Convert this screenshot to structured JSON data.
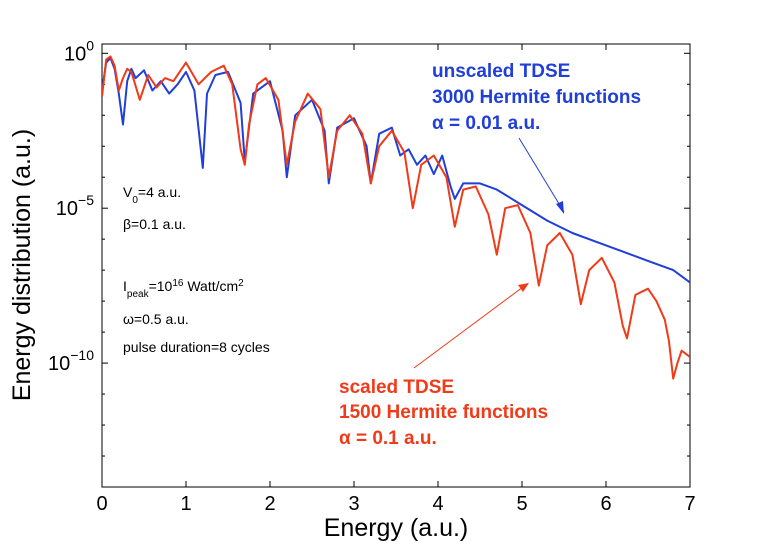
{
  "chart_data": {
    "type": "line",
    "xlabel": "Energy (a.u.)",
    "ylabel": "Energy distribution (a.u.)",
    "xlim": [
      0,
      7
    ],
    "ylim_log10": [
      -14,
      0.3
    ],
    "y_scale": "log",
    "x_ticks": [
      "0",
      "1",
      "2",
      "3",
      "4",
      "5",
      "6",
      "7"
    ],
    "y_ticks": [
      {
        "base": "10",
        "exp": "0"
      },
      {
        "base": "10",
        "exp": "−5"
      },
      {
        "base": "10",
        "exp": "−10"
      }
    ],
    "params": {
      "v0": {
        "pre": "V",
        "sub": "0",
        "post": "=4 a.u."
      },
      "beta": "β=0.1 a.u.",
      "ipeak": {
        "pre": "I",
        "sub": "peak",
        "mid": "=10",
        "sup1": "16",
        "mid2": " Watt/cm",
        "sup2": "2"
      },
      "omega": "ω=0.5 a.u.",
      "duration": "pulse duration=8 cycles"
    },
    "series": [
      {
        "name": "unscaled TDSE",
        "legend_lines": [
          "unscaled TDSE",
          "3000 Hermite functions",
          "α = 0.01 a.u."
        ],
        "color": "#1f3fd8",
        "x": [
          0,
          0.05,
          0.1,
          0.15,
          0.2,
          0.25,
          0.3,
          0.35,
          0.4,
          0.5,
          0.6,
          0.7,
          0.8,
          0.9,
          1.0,
          1.1,
          1.2,
          1.25,
          1.35,
          1.5,
          1.65,
          1.7,
          1.8,
          2.0,
          2.15,
          2.2,
          2.3,
          2.5,
          2.65,
          2.7,
          2.8,
          3.0,
          3.15,
          3.2,
          3.3,
          3.45,
          3.55,
          3.65,
          3.75,
          3.85,
          3.95,
          4.05,
          4.15,
          4.2,
          4.3,
          4.5,
          4.7,
          5.0,
          5.3,
          5.6,
          5.9,
          6.2,
          6.5,
          6.8,
          7.0
        ],
        "log10_y": [
          -1.2,
          -0.3,
          -0.15,
          -0.5,
          -1.3,
          -2.3,
          -0.9,
          -0.5,
          -0.8,
          -0.55,
          -1.2,
          -0.9,
          -1.3,
          -1.0,
          -0.6,
          -1.2,
          -3.7,
          -1.3,
          -0.7,
          -0.6,
          -1.6,
          -3.5,
          -1.3,
          -0.9,
          -2.5,
          -4.0,
          -2.0,
          -1.5,
          -2.5,
          -4.2,
          -2.4,
          -2.1,
          -3.0,
          -4.2,
          -2.6,
          -2.4,
          -3.3,
          -3.1,
          -3.6,
          -3.3,
          -3.9,
          -3.3,
          -4.3,
          -4.7,
          -4.2,
          -4.2,
          -4.4,
          -4.9,
          -5.4,
          -5.8,
          -6.1,
          -6.4,
          -6.7,
          -7.0,
          -7.4
        ]
      },
      {
        "name": "scaled TDSE",
        "legend_lines": [
          "scaled TDSE",
          "1500 Hermite functions",
          "α = 0.1 a.u."
        ],
        "color": "#f03a18",
        "x": [
          0,
          0.05,
          0.1,
          0.15,
          0.2,
          0.25,
          0.3,
          0.35,
          0.45,
          0.55,
          0.65,
          0.75,
          0.85,
          1.0,
          1.15,
          1.3,
          1.45,
          1.55,
          1.65,
          1.7,
          1.75,
          1.85,
          1.95,
          2.1,
          2.2,
          2.3,
          2.45,
          2.6,
          2.7,
          2.8,
          2.95,
          3.1,
          3.2,
          3.3,
          3.45,
          3.6,
          3.7,
          3.8,
          3.95,
          4.1,
          4.2,
          4.3,
          4.45,
          4.6,
          4.7,
          4.8,
          4.95,
          5.1,
          5.2,
          5.3,
          5.45,
          5.6,
          5.7,
          5.8,
          5.95,
          6.1,
          6.2,
          6.25,
          6.35,
          6.5,
          6.6,
          6.7,
          6.75,
          6.8,
          6.85,
          6.9,
          7.0
        ],
        "log10_y": [
          -1.4,
          -0.2,
          -0.1,
          -0.4,
          -1.2,
          -0.8,
          -0.5,
          -0.6,
          -1.5,
          -0.7,
          -1.1,
          -0.8,
          -0.9,
          -0.3,
          -1.0,
          -0.6,
          -0.4,
          -1.0,
          -3.1,
          -3.6,
          -2.3,
          -1.0,
          -0.8,
          -1.5,
          -3.6,
          -2.2,
          -1.3,
          -1.8,
          -4.0,
          -2.5,
          -2.0,
          -2.6,
          -4.2,
          -3.0,
          -2.5,
          -3.2,
          -5.0,
          -3.6,
          -3.3,
          -4.0,
          -5.6,
          -4.4,
          -4.3,
          -5.2,
          -6.5,
          -5.0,
          -4.9,
          -5.8,
          -7.5,
          -6.2,
          -5.8,
          -6.5,
          -8.1,
          -7.0,
          -6.6,
          -7.4,
          -8.8,
          -9.2,
          -7.8,
          -7.6,
          -8.0,
          -8.6,
          -9.3,
          -10.5,
          -10.0,
          -9.6,
          -9.8
        ]
      }
    ]
  }
}
